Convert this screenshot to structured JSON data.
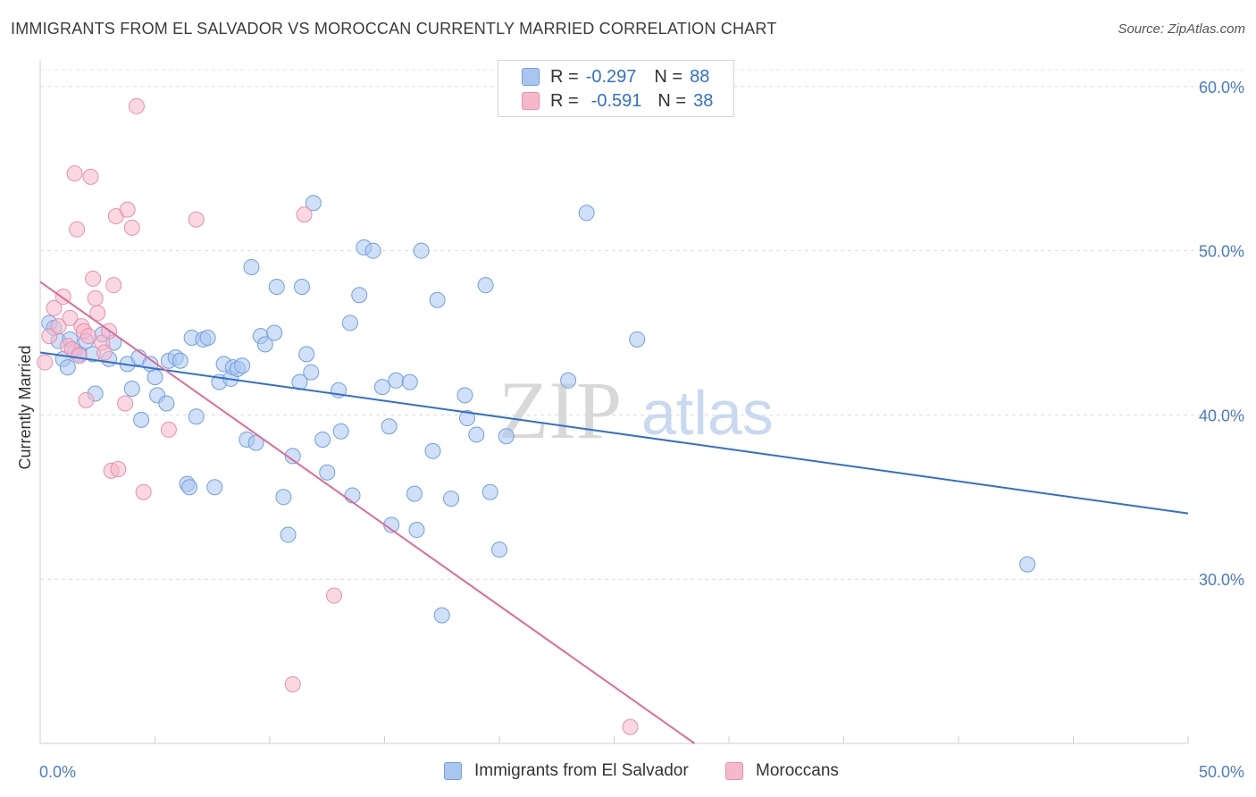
{
  "header": {
    "title": "IMMIGRANTS FROM EL SALVADOR VS MOROCCAN CURRENTLY MARRIED CORRELATION CHART",
    "source": "Source: ZipAtlas.com"
  },
  "watermark": {
    "zip": "ZIP",
    "atlas": "atlas"
  },
  "legend": {
    "rows": [
      {
        "r_label": "R =",
        "r_value": "-0.297",
        "n_label": "N =",
        "n_value": "88",
        "color": "#a9c6f0"
      },
      {
        "r_label": "R =",
        "r_value": "-0.591",
        "n_label": "N =",
        "n_value": "38",
        "color": "#f6b8cb"
      }
    ]
  },
  "bottom_legend": {
    "items": [
      {
        "label": "Immigrants from El Salvador",
        "color": "#a9c6f0"
      },
      {
        "label": "Moroccans",
        "color": "#f6b8cb"
      }
    ]
  },
  "chart_data": {
    "type": "scatter",
    "title": "IMMIGRANTS FROM EL SALVADOR VS MOROCCAN CURRENTLY MARRIED CORRELATION CHART",
    "xlabel": "",
    "ylabel": "Currently Married",
    "xlim": [
      0,
      50
    ],
    "ylim": [
      20,
      62
    ],
    "x_tick_labels": [
      "0.0%",
      "50.0%"
    ],
    "y_ticks": [
      30,
      40,
      50,
      60
    ],
    "y_tick_labels": [
      "30.0%",
      "40.0%",
      "50.0%",
      "60.0%"
    ],
    "grid": "horizontal dashed",
    "legend_position": "top-center",
    "series": [
      {
        "name": "Immigrants from El Salvador",
        "color": "#6fa0e0",
        "fill": "#a9c6f0",
        "trend": {
          "x": [
            0,
            50
          ],
          "y": [
            43.8,
            34.0
          ],
          "color": "#2f6fd1"
        },
        "points": [
          [
            0.4,
            45.6
          ],
          [
            0.6,
            45.3
          ],
          [
            0.8,
            44.5
          ],
          [
            1.0,
            43.4
          ],
          [
            1.2,
            42.9
          ],
          [
            1.3,
            44.6
          ],
          [
            1.5,
            43.9
          ],
          [
            1.7,
            43.7
          ],
          [
            2.0,
            44.5
          ],
          [
            2.3,
            43.7
          ],
          [
            2.4,
            41.3
          ],
          [
            2.7,
            44.9
          ],
          [
            3.0,
            43.4
          ],
          [
            3.2,
            44.4
          ],
          [
            3.8,
            43.1
          ],
          [
            4.0,
            41.6
          ],
          [
            4.3,
            43.5
          ],
          [
            4.4,
            39.7
          ],
          [
            4.8,
            43.1
          ],
          [
            5.0,
            42.3
          ],
          [
            5.1,
            41.2
          ],
          [
            5.5,
            40.7
          ],
          [
            5.6,
            43.3
          ],
          [
            5.9,
            43.5
          ],
          [
            6.1,
            43.3
          ],
          [
            6.4,
            35.8
          ],
          [
            6.5,
            35.6
          ],
          [
            6.6,
            44.7
          ],
          [
            6.8,
            39.9
          ],
          [
            7.1,
            44.6
          ],
          [
            7.3,
            44.7
          ],
          [
            7.6,
            35.6
          ],
          [
            7.8,
            42.0
          ],
          [
            8.0,
            43.1
          ],
          [
            8.3,
            42.2
          ],
          [
            8.4,
            42.9
          ],
          [
            8.6,
            42.8
          ],
          [
            8.8,
            43.0
          ],
          [
            9.0,
            38.5
          ],
          [
            9.2,
            49.0
          ],
          [
            9.4,
            38.3
          ],
          [
            9.6,
            44.8
          ],
          [
            9.8,
            44.3
          ],
          [
            10.2,
            45.0
          ],
          [
            10.3,
            47.8
          ],
          [
            10.6,
            35.0
          ],
          [
            10.8,
            32.7
          ],
          [
            11.0,
            37.5
          ],
          [
            11.3,
            42.0
          ],
          [
            11.4,
            47.8
          ],
          [
            11.6,
            43.7
          ],
          [
            11.8,
            42.6
          ],
          [
            11.9,
            52.9
          ],
          [
            12.3,
            38.5
          ],
          [
            12.5,
            36.5
          ],
          [
            13.0,
            41.5
          ],
          [
            13.1,
            39.0
          ],
          [
            13.5,
            45.6
          ],
          [
            13.6,
            35.1
          ],
          [
            13.9,
            47.3
          ],
          [
            14.1,
            50.2
          ],
          [
            14.5,
            50.0
          ],
          [
            14.9,
            41.7
          ],
          [
            15.2,
            39.3
          ],
          [
            15.3,
            33.3
          ],
          [
            15.5,
            42.1
          ],
          [
            16.1,
            42.0
          ],
          [
            16.3,
            35.2
          ],
          [
            16.4,
            33.0
          ],
          [
            16.6,
            50.0
          ],
          [
            17.1,
            37.8
          ],
          [
            17.3,
            47.0
          ],
          [
            17.5,
            27.8
          ],
          [
            17.9,
            34.9
          ],
          [
            18.5,
            41.2
          ],
          [
            18.6,
            39.8
          ],
          [
            19.0,
            38.8
          ],
          [
            19.4,
            47.9
          ],
          [
            19.6,
            35.3
          ],
          [
            20.0,
            31.8
          ],
          [
            20.3,
            38.7
          ],
          [
            23.0,
            42.1
          ],
          [
            23.8,
            52.3
          ],
          [
            26.0,
            44.6
          ],
          [
            43.0,
            30.9
          ]
        ]
      },
      {
        "name": "Moroccans",
        "color": "#e98fac",
        "fill": "#f6b8cb",
        "trend": {
          "x": [
            0,
            28.5
          ],
          "y": [
            48.1,
            20.0
          ],
          "color": "#e06b96"
        },
        "points": [
          [
            0.2,
            43.2
          ],
          [
            0.4,
            44.8
          ],
          [
            0.6,
            46.5
          ],
          [
            0.8,
            45.4
          ],
          [
            1.0,
            47.2
          ],
          [
            1.2,
            44.2
          ],
          [
            1.3,
            45.9
          ],
          [
            1.4,
            44.0
          ],
          [
            1.5,
            54.7
          ],
          [
            1.6,
            51.3
          ],
          [
            1.7,
            43.6
          ],
          [
            1.8,
            45.4
          ],
          [
            1.9,
            45.1
          ],
          [
            2.0,
            40.9
          ],
          [
            2.1,
            44.8
          ],
          [
            2.2,
            54.5
          ],
          [
            2.3,
            48.3
          ],
          [
            2.4,
            47.1
          ],
          [
            2.5,
            46.2
          ],
          [
            2.7,
            44.4
          ],
          [
            2.8,
            43.8
          ],
          [
            3.0,
            45.1
          ],
          [
            3.1,
            36.6
          ],
          [
            3.2,
            47.9
          ],
          [
            3.3,
            52.1
          ],
          [
            3.4,
            36.7
          ],
          [
            3.7,
            40.7
          ],
          [
            3.8,
            52.5
          ],
          [
            4.0,
            51.4
          ],
          [
            4.2,
            58.8
          ],
          [
            4.5,
            35.3
          ],
          [
            5.6,
            39.1
          ],
          [
            6.8,
            51.9
          ],
          [
            11.5,
            52.2
          ],
          [
            11.0,
            23.6
          ],
          [
            12.8,
            29.0
          ],
          [
            25.7,
            21.0
          ]
        ]
      }
    ]
  }
}
